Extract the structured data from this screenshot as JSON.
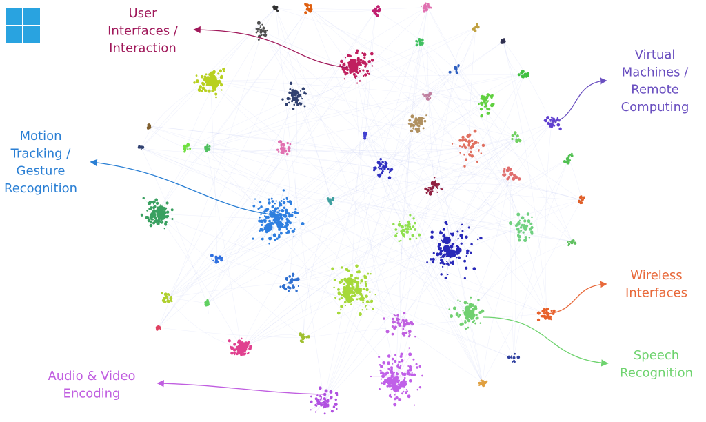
{
  "labels": [
    {
      "lines": [
        "User",
        "Interfaces /",
        "Interaction"
      ]
    },
    {
      "lines": [
        "Virtual",
        "Machines /",
        "Remote",
        "Computing"
      ]
    },
    {
      "lines": [
        "Motion",
        "Tracking /",
        "Gesture",
        "Recognition"
      ]
    },
    {
      "lines": [
        "Wireless",
        "Interfaces"
      ]
    },
    {
      "lines": [
        "Speech",
        "Recognition"
      ]
    },
    {
      "lines": [
        "Audio & Video",
        "Encoding"
      ]
    }
  ]
}
